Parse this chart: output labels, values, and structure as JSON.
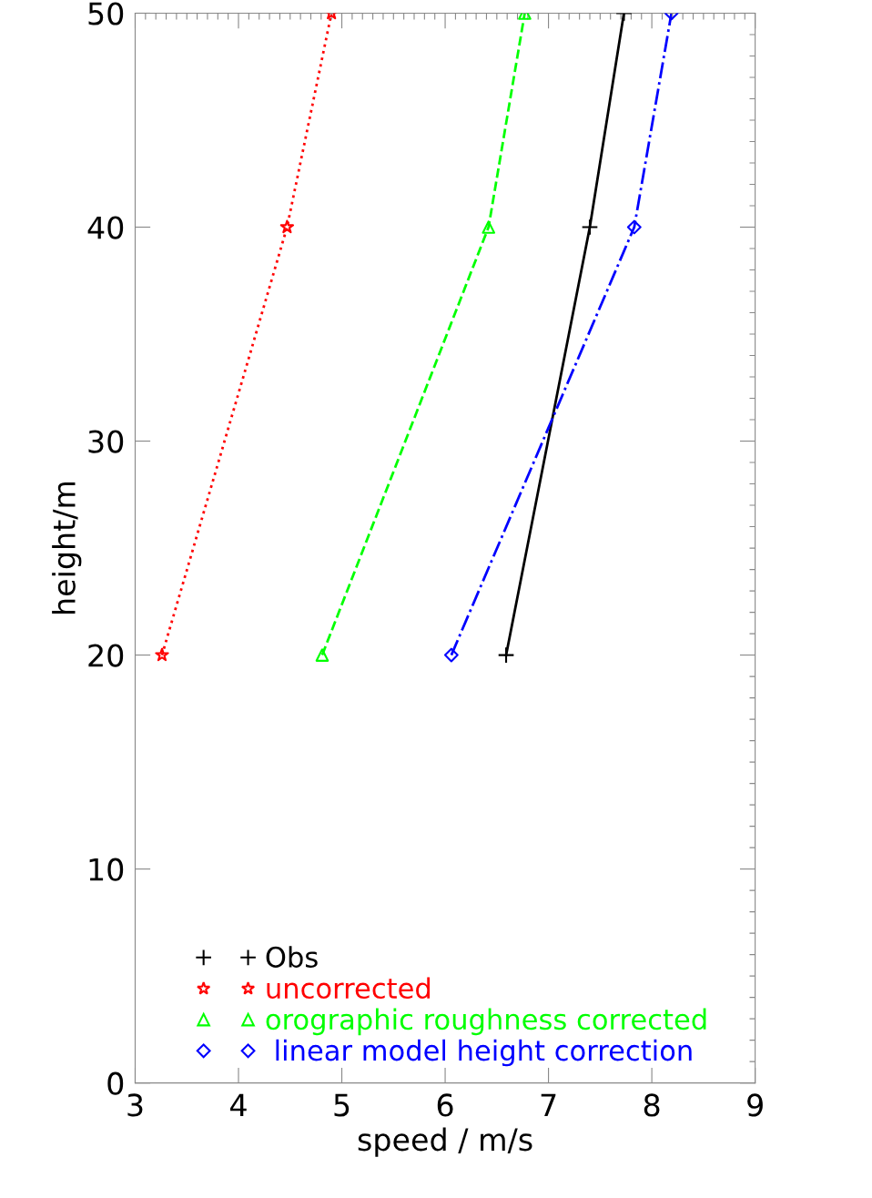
{
  "chart_data": {
    "type": "line",
    "xlabel": "speed / m/s",
    "ylabel": "height/m",
    "xlim": [
      3,
      9
    ],
    "xticks": [
      3,
      4,
      5,
      6,
      7,
      8,
      9
    ],
    "ylim": [
      0,
      50
    ],
    "yticks": [
      0,
      10,
      20,
      30,
      40,
      50
    ],
    "grid": false,
    "legend": "bottom left",
    "series": [
      {
        "name": "Obs",
        "color": "#000000",
        "x": [
          6.59,
          7.4,
          7.73
        ],
        "values": [
          20,
          40,
          50
        ],
        "marker": "cross",
        "line_style": "solid"
      },
      {
        "name": "uncorrected",
        "color": "#ff0000",
        "x": [
          3.26,
          4.47,
          4.9
        ],
        "values": [
          20,
          40,
          50
        ],
        "marker": "star",
        "line_style": "dotted"
      },
      {
        "name": "orographic roughness corrected",
        "color": "#00ff00",
        "x": [
          4.81,
          6.42,
          6.77
        ],
        "values": [
          20,
          40,
          50
        ],
        "marker": "triangle",
        "line_style": "dashed"
      },
      {
        "name": " linear model height correction",
        "color": "#0000ff",
        "x": [
          6.06,
          7.83,
          8.19
        ],
        "values": [
          20,
          40,
          50
        ],
        "marker": "diamond",
        "line_style": "dashdot"
      }
    ]
  }
}
